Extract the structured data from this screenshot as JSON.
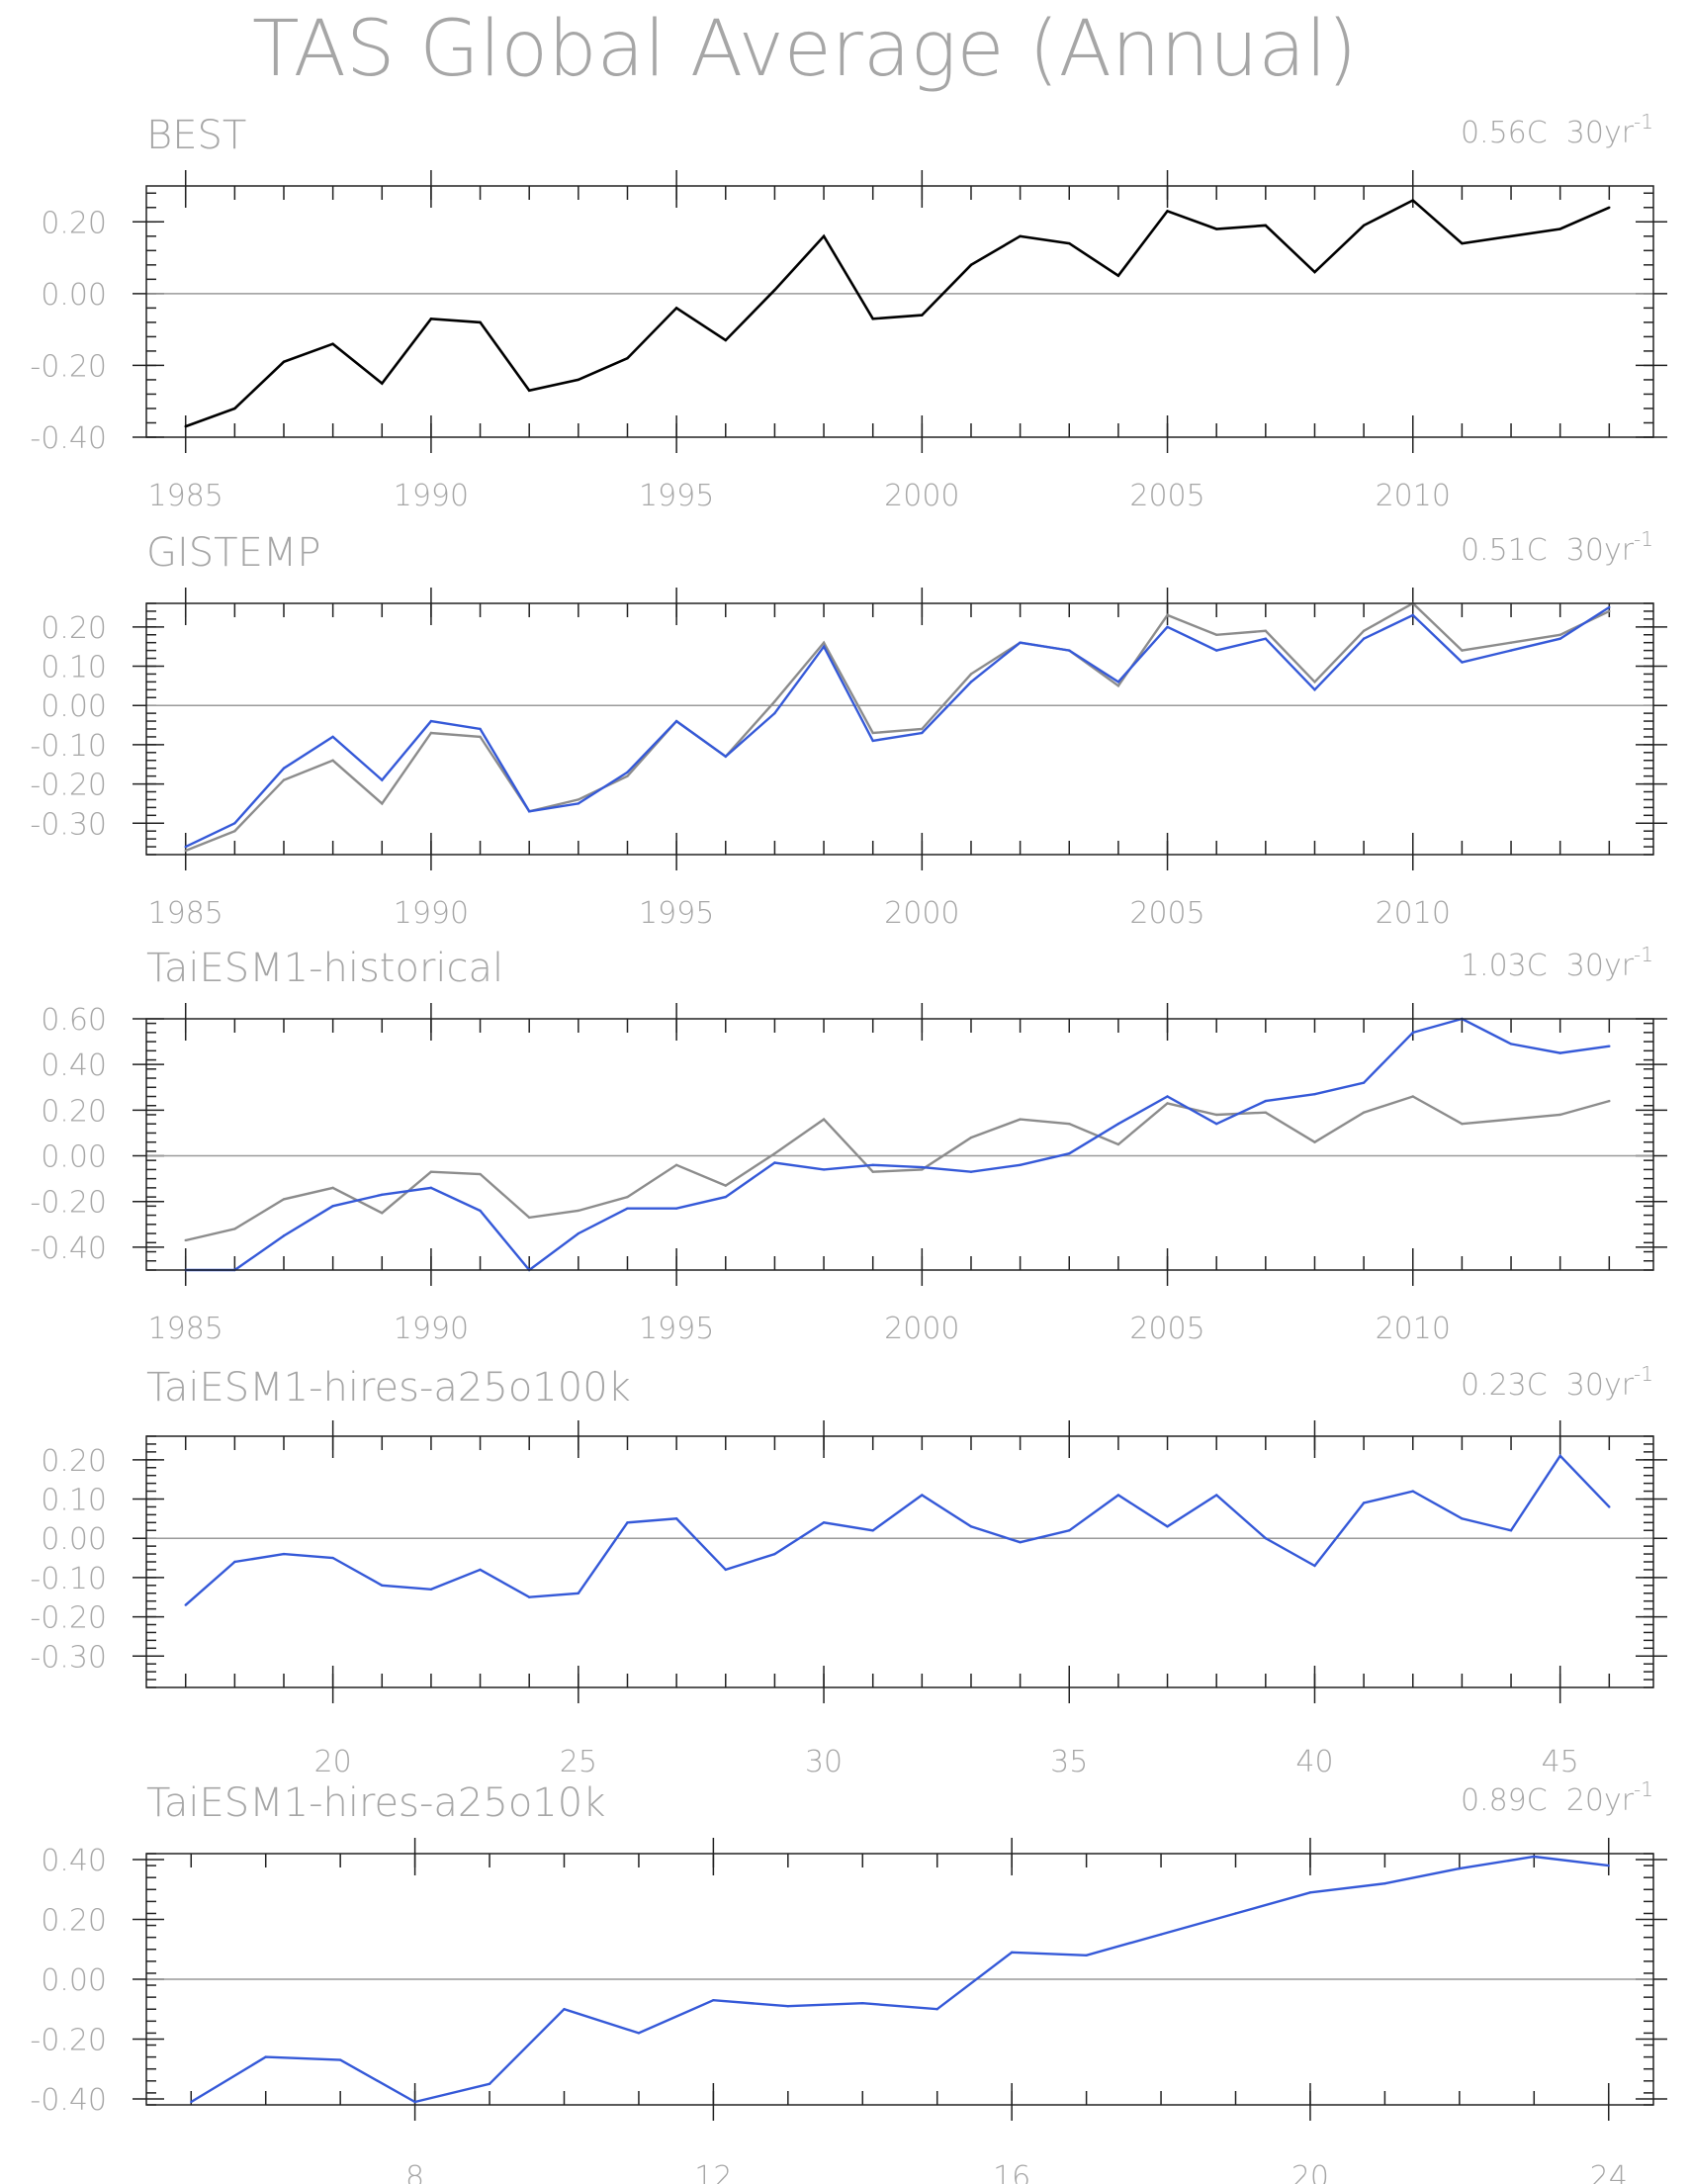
{
  "title": "TAS Global Average (Annual)",
  "colors": {
    "observation": "#000000",
    "reference": "#8c8c8c",
    "model": "#3559d8",
    "text": "#a6a6a6",
    "zero": "#999999"
  },
  "chart_data": [
    {
      "type": "line",
      "title": "BEST",
      "trend": {
        "value": "0.56C",
        "period": "30yr",
        "exponent": "-1"
      },
      "x": [
        1985,
        1986,
        1987,
        1988,
        1989,
        1990,
        1991,
        1992,
        1993,
        1994,
        1995,
        1996,
        1997,
        1998,
        1999,
        2000,
        2001,
        2002,
        2003,
        2004,
        2005,
        2006,
        2007,
        2008,
        2009,
        2010,
        2011,
        2012,
        2013,
        2014
      ],
      "xlim": [
        1984.2,
        2014.9
      ],
      "x_ticks": [
        1985,
        1990,
        1995,
        2000,
        2005,
        2010
      ],
      "x_tick_labels": [
        "1985",
        "1990",
        "1995",
        "2000",
        "2005",
        "2010"
      ],
      "ylim": [
        -0.4,
        0.3
      ],
      "y_ticks": [
        -0.4,
        -0.2,
        0.0,
        0.2
      ],
      "y_tick_labels": [
        "-0.40",
        "-0.20",
        "0.00",
        "0.20"
      ],
      "series": [
        {
          "role": "observation",
          "values": [
            -0.37,
            -0.32,
            -0.19,
            -0.14,
            -0.25,
            -0.07,
            -0.08,
            -0.27,
            -0.24,
            -0.18,
            -0.04,
            -0.13,
            0.01,
            0.16,
            -0.07,
            -0.06,
            0.08,
            0.16,
            0.14,
            0.05,
            0.23,
            0.18,
            0.19,
            0.06,
            0.19,
            0.26,
            0.14,
            0.16,
            0.18,
            0.24
          ]
        }
      ]
    },
    {
      "type": "line",
      "title": "GISTEMP",
      "trend": {
        "value": "0.51C",
        "period": "30yr",
        "exponent": "-1"
      },
      "x": [
        1985,
        1986,
        1987,
        1988,
        1989,
        1990,
        1991,
        1992,
        1993,
        1994,
        1995,
        1996,
        1997,
        1998,
        1999,
        2000,
        2001,
        2002,
        2003,
        2004,
        2005,
        2006,
        2007,
        2008,
        2009,
        2010,
        2011,
        2012,
        2013,
        2014
      ],
      "xlim": [
        1984.2,
        2014.9
      ],
      "x_ticks": [
        1985,
        1990,
        1995,
        2000,
        2005,
        2010
      ],
      "x_tick_labels": [
        "1985",
        "1990",
        "1995",
        "2000",
        "2005",
        "2010"
      ],
      "ylim": [
        -0.38,
        0.26
      ],
      "y_ticks": [
        -0.3,
        -0.2,
        -0.1,
        0.0,
        0.1,
        0.2
      ],
      "y_tick_labels": [
        "-0.30",
        "-0.20",
        "-0.10",
        "0.00",
        "0.10",
        "0.20"
      ],
      "series": [
        {
          "role": "reference",
          "values": [
            -0.37,
            -0.32,
            -0.19,
            -0.14,
            -0.25,
            -0.07,
            -0.08,
            -0.27,
            -0.24,
            -0.18,
            -0.04,
            -0.13,
            0.01,
            0.16,
            -0.07,
            -0.06,
            0.08,
            0.16,
            0.14,
            0.05,
            0.23,
            0.18,
            0.19,
            0.06,
            0.19,
            0.26,
            0.14,
            0.16,
            0.18,
            0.24
          ]
        },
        {
          "role": "model",
          "values": [
            -0.36,
            -0.3,
            -0.16,
            -0.08,
            -0.19,
            -0.04,
            -0.06,
            -0.27,
            -0.25,
            -0.17,
            -0.04,
            -0.13,
            -0.02,
            0.15,
            -0.09,
            -0.07,
            0.06,
            0.16,
            0.14,
            0.06,
            0.2,
            0.14,
            0.17,
            0.04,
            0.17,
            0.23,
            0.11,
            0.14,
            0.17,
            0.25
          ]
        }
      ]
    },
    {
      "type": "line",
      "title": "TaiESM1-historical",
      "trend": {
        "value": "1.03C",
        "period": "30yr",
        "exponent": "-1"
      },
      "x": [
        1985,
        1986,
        1987,
        1988,
        1989,
        1990,
        1991,
        1992,
        1993,
        1994,
        1995,
        1996,
        1997,
        1998,
        1999,
        2000,
        2001,
        2002,
        2003,
        2004,
        2005,
        2006,
        2007,
        2008,
        2009,
        2010,
        2011,
        2012,
        2013,
        2014
      ],
      "xlim": [
        1984.2,
        2014.9
      ],
      "x_ticks": [
        1985,
        1990,
        1995,
        2000,
        2005,
        2010
      ],
      "x_tick_labels": [
        "1985",
        "1990",
        "1995",
        "2000",
        "2005",
        "2010"
      ],
      "ylim": [
        -0.5,
        0.6
      ],
      "y_ticks": [
        -0.4,
        -0.2,
        0.0,
        0.2,
        0.4,
        0.6
      ],
      "y_tick_labels": [
        "-0.40",
        "-0.20",
        "0.00",
        "0.20",
        "0.40",
        "0.60"
      ],
      "series": [
        {
          "role": "reference",
          "values": [
            -0.37,
            -0.32,
            -0.19,
            -0.14,
            -0.25,
            -0.07,
            -0.08,
            -0.27,
            -0.24,
            -0.18,
            -0.04,
            -0.13,
            0.01,
            0.16,
            -0.07,
            -0.06,
            0.08,
            0.16,
            0.14,
            0.05,
            0.23,
            0.18,
            0.19,
            0.06,
            0.19,
            0.26,
            0.14,
            0.16,
            0.18,
            0.24
          ]
        },
        {
          "role": "model",
          "values": [
            -0.5,
            -0.5,
            -0.35,
            -0.22,
            -0.17,
            -0.14,
            -0.24,
            -0.5,
            -0.34,
            -0.23,
            -0.23,
            -0.18,
            -0.03,
            -0.06,
            -0.04,
            -0.05,
            -0.07,
            -0.04,
            0.01,
            0.14,
            0.26,
            0.14,
            0.24,
            0.27,
            0.32,
            0.54,
            0.6,
            0.49,
            0.45,
            0.48
          ]
        }
      ]
    },
    {
      "type": "line",
      "title": "TaiESM1-hires-a25o100k",
      "trend": {
        "value": "0.23C",
        "period": "30yr",
        "exponent": "-1"
      },
      "x": [
        17,
        18,
        19,
        20,
        21,
        22,
        23,
        24,
        25,
        26,
        27,
        28,
        29,
        30,
        31,
        32,
        33,
        34,
        35,
        36,
        37,
        38,
        39,
        40,
        41,
        42,
        43,
        44,
        45,
        46
      ],
      "xlim": [
        16.2,
        46.9
      ],
      "x_ticks": [
        20,
        25,
        30,
        35,
        40,
        45
      ],
      "x_tick_labels": [
        "20",
        "25",
        "30",
        "35",
        "40",
        "45"
      ],
      "ylim": [
        -0.38,
        0.26
      ],
      "y_ticks": [
        -0.3,
        -0.2,
        -0.1,
        0.0,
        0.1,
        0.2
      ],
      "y_tick_labels": [
        "-0.30",
        "-0.20",
        "-0.10",
        "0.00",
        "0.10",
        "0.20"
      ],
      "series": [
        {
          "role": "model",
          "values": [
            -0.17,
            -0.06,
            -0.04,
            -0.05,
            -0.12,
            -0.13,
            -0.08,
            -0.15,
            -0.14,
            0.04,
            0.05,
            -0.08,
            -0.04,
            0.04,
            0.02,
            0.11,
            0.03,
            -0.01,
            0.02,
            0.11,
            0.03,
            0.11,
            0.0,
            -0.07,
            0.09,
            0.12,
            0.05,
            0.02,
            0.21,
            0.08
          ]
        }
      ]
    },
    {
      "type": "line",
      "title": "TaiESM1-hires-a25o10k",
      "trend": {
        "value": "0.89C",
        "period": "20yr",
        "exponent": "-1"
      },
      "x": [
        5,
        6,
        7,
        8,
        9,
        10,
        11,
        12,
        13,
        14,
        15,
        16,
        17,
        18,
        19,
        20,
        21,
        22,
        23,
        24
      ],
      "xlim": [
        4.4,
        24.6
      ],
      "x_ticks": [
        8,
        12,
        16,
        20,
        24
      ],
      "x_tick_labels": [
        "8",
        "12",
        "16",
        "20",
        "24"
      ],
      "ylim": [
        -0.42,
        0.42
      ],
      "y_ticks": [
        -0.4,
        -0.2,
        0.0,
        0.2,
        0.4
      ],
      "y_tick_labels": [
        "-0.40",
        "-0.20",
        "0.00",
        "0.20",
        "0.40"
      ],
      "series": [
        {
          "role": "model",
          "values": [
            -0.41,
            -0.26,
            -0.27,
            -0.41,
            -0.35,
            -0.1,
            -0.18,
            -0.07,
            -0.09,
            -0.08,
            -0.1,
            0.09,
            0.08,
            0.15,
            0.22,
            0.29,
            0.32,
            0.37,
            0.41,
            0.38
          ]
        }
      ]
    }
  ]
}
